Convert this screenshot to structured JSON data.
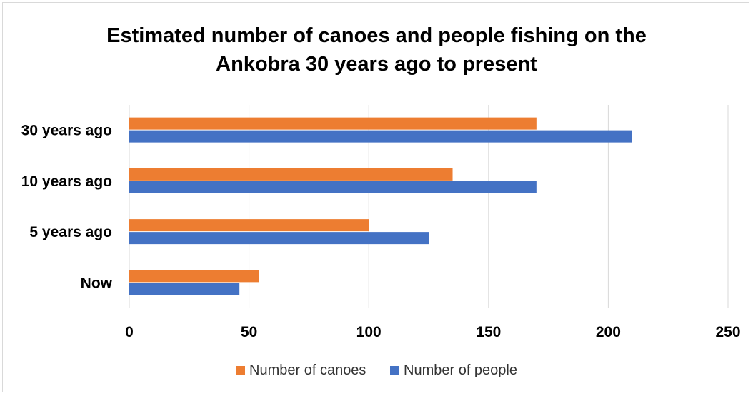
{
  "chart_data": {
    "type": "bar",
    "orientation": "horizontal",
    "title": [
      "Estimated number of canoes and people fishing on the",
      "Ankobra 30 years ago to present"
    ],
    "categories": [
      "30 years ago",
      "10 years ago",
      "5 years ago",
      "Now"
    ],
    "series": [
      {
        "name": "Number of canoes",
        "values": [
          170,
          135,
          100,
          54
        ],
        "color": "#ed7d31"
      },
      {
        "name": "Number of people",
        "values": [
          210,
          170,
          125,
          46
        ],
        "color": "#4472c4"
      }
    ],
    "xlim": [
      0,
      250
    ],
    "xticks": [
      "0",
      "50",
      "100",
      "150",
      "200",
      "250"
    ],
    "grid": true,
    "legend_position": "bottom"
  }
}
